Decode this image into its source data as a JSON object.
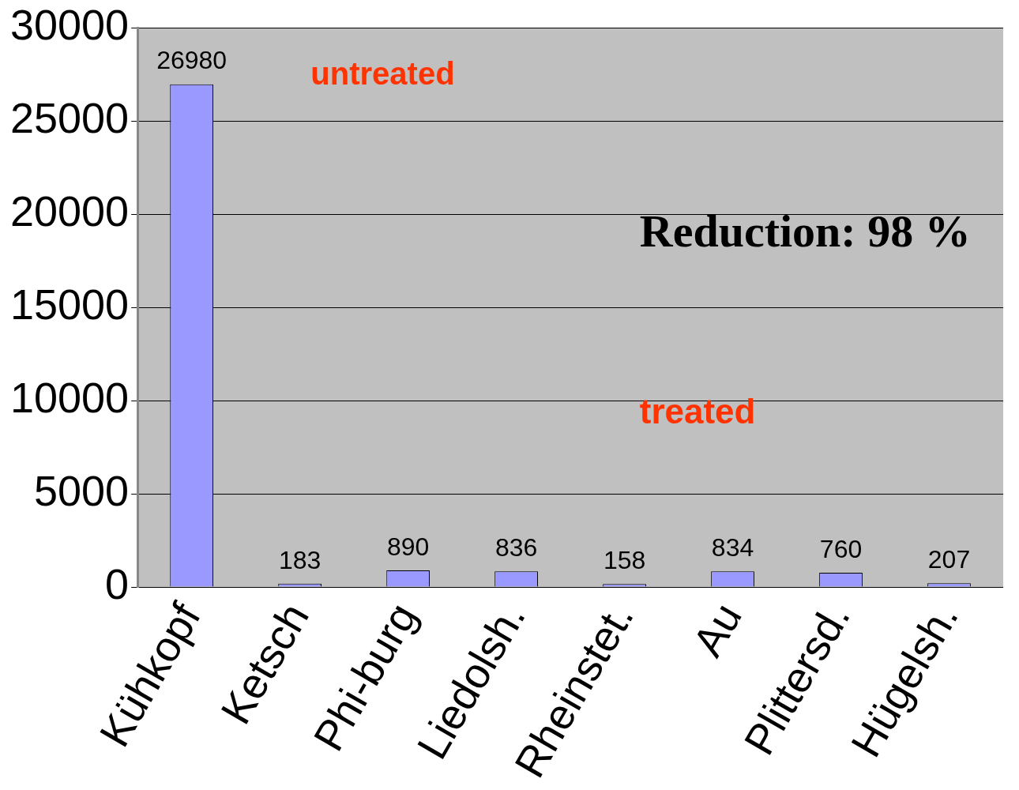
{
  "chart_data": {
    "type": "bar",
    "categories": [
      "Kühkopf",
      "Ketsch",
      "Phi-burg",
      "Liedolsh.",
      "Rheinstet.",
      "Au",
      "Plittersd.",
      "Hügelsh."
    ],
    "values": [
      26980,
      183,
      890,
      836,
      158,
      834,
      760,
      207
    ],
    "color": "#9999ff",
    "ylim": [
      0,
      30000
    ],
    "yticks": [
      0,
      5000,
      10000,
      15000,
      20000,
      25000,
      30000
    ],
    "grid": "y",
    "data_labels": true,
    "legend": false,
    "annotations": [
      "untreated",
      "treated",
      "Reduction: 98 %"
    ]
  }
}
